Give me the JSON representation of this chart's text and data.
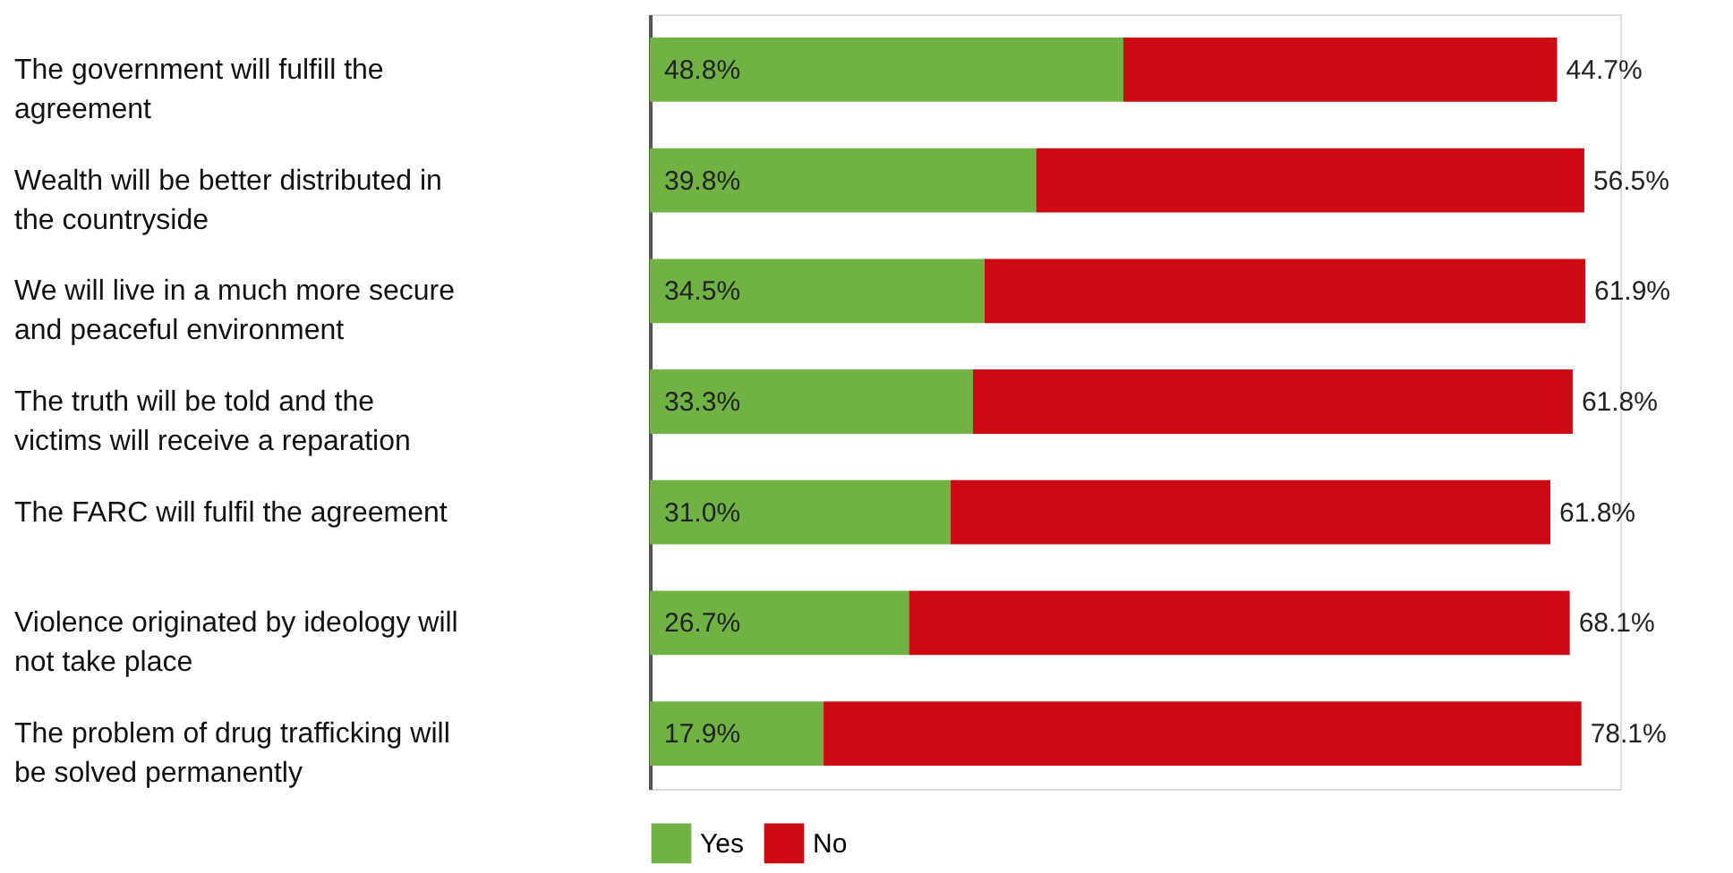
{
  "chart_data": {
    "type": "bar",
    "orientation": "horizontal",
    "stacked": true,
    "categories": [
      "The government will fulfill the agreement",
      "Wealth will be better distributed in the countryside",
      "We will live in a much more secure and peaceful environment",
      "The truth will be told and the victims will receive a reparation",
      "The FARC will fulfil the agreement",
      "Violence originated by ideology will not take place",
      "The problem of drug trafficking will be solved permanently"
    ],
    "series": [
      {
        "name": "Yes",
        "color": "#70b244",
        "values": [
          48.8,
          39.8,
          34.5,
          33.3,
          31.0,
          26.7,
          17.9
        ],
        "value_labels": [
          "48.8%",
          "39.8%",
          "34.5%",
          "33.3%",
          "31.0%",
          "26.7%",
          "17.9%"
        ]
      },
      {
        "name": "No",
        "color": "#cc0a14",
        "values": [
          44.7,
          56.5,
          61.9,
          61.8,
          61.8,
          68.1,
          78.1
        ],
        "value_labels": [
          "44.7%",
          "56.5%",
          "61.9%",
          "61.8%",
          "61.8%",
          "68.1%",
          "78.1%"
        ]
      }
    ],
    "tick_labels": false,
    "legend": "bottom",
    "grid": false
  }
}
